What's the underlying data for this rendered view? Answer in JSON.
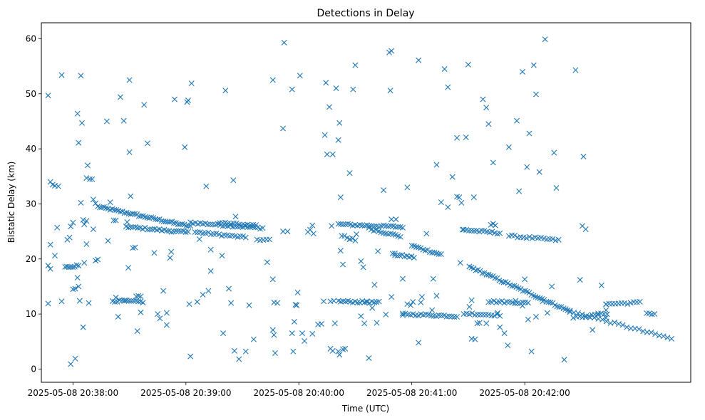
{
  "chart_data": {
    "type": "scatter",
    "title": "Detections in Delay",
    "xlabel": "Time (UTC)",
    "ylabel": "Bistatic Delay (km)",
    "x_unit": "minutes after 2025-05-08 20:37:00",
    "xlim": [
      0.72,
      6.47
    ],
    "ylim": [
      -2.4,
      62.9
    ],
    "x_ticks": [
      {
        "value": 1,
        "label": "2025-05-08 20:38:00"
      },
      {
        "value": 2,
        "label": "2025-05-08 20:39:00"
      },
      {
        "value": 3,
        "label": "2025-05-08 20:40:00"
      },
      {
        "value": 4,
        "label": "2025-05-08 20:41:00"
      },
      {
        "value": 5,
        "label": "2025-05-08 20:42:00"
      }
    ],
    "y_ticks": [
      {
        "value": 0,
        "label": "0"
      },
      {
        "value": 10,
        "label": "10"
      },
      {
        "value": 20,
        "label": "20"
      },
      {
        "value": 30,
        "label": "30"
      },
      {
        "value": 40,
        "label": "40"
      },
      {
        "value": 50,
        "label": "50"
      },
      {
        "value": 60,
        "label": "60"
      }
    ],
    "marker": "x",
    "color": "#1f77b4",
    "track_descriptions_note": "dense detection tracks encoded as line segments in data units",
    "tracks": [
      {
        "name": "track-a",
        "x0": 1.22,
        "y0": 29.5,
        "x1": 2.04,
        "y1": 25.9,
        "n": 46
      },
      {
        "name": "track-b",
        "x0": 2.04,
        "y0": 26.6,
        "x1": 2.68,
        "y1": 25.6,
        "n": 30
      },
      {
        "name": "track-c",
        "x0": 2.08,
        "y0": 24.9,
        "x1": 2.53,
        "y1": 23.9,
        "n": 20
      },
      {
        "name": "track-d",
        "x0": 1.49,
        "y0": 25.8,
        "x1": 2.02,
        "y1": 24.8,
        "n": 26
      },
      {
        "name": "track-e",
        "x0": 2.63,
        "y0": 23.6,
        "x1": 2.74,
        "y1": 23.5,
        "n": 5
      },
      {
        "name": "track-f",
        "x0": 3.35,
        "y0": 26.3,
        "x1": 3.92,
        "y1": 25.8,
        "n": 28
      },
      {
        "name": "track-g",
        "x0": 3.62,
        "y0": 25.5,
        "x1": 3.9,
        "y1": 24.1,
        "n": 14
      },
      {
        "name": "track-h",
        "x0": 3.38,
        "y0": 24.2,
        "x1": 3.5,
        "y1": 23.4,
        "n": 6
      },
      {
        "name": "track-i",
        "x0": 3.83,
        "y0": 20.8,
        "x1": 4.02,
        "y1": 20.3,
        "n": 10
      },
      {
        "name": "track-j",
        "x0": 4.0,
        "y0": 22.4,
        "x1": 4.26,
        "y1": 20.8,
        "n": 14
      },
      {
        "name": "track-k",
        "x0": 4.46,
        "y0": 25.3,
        "x1": 4.78,
        "y1": 24.7,
        "n": 15
      },
      {
        "name": "track-l",
        "x0": 4.86,
        "y0": 24.2,
        "x1": 5.3,
        "y1": 23.4,
        "n": 18
      },
      {
        "name": "track-m",
        "x0": 4.51,
        "y0": 18.6,
        "x1": 5.4,
        "y1": 10.5,
        "n": 48
      },
      {
        "name": "track-n",
        "x0": 5.4,
        "y0": 10.5,
        "x1": 6.3,
        "y1": 5.5,
        "n": 26
      },
      {
        "name": "track-o",
        "x0": 0.93,
        "y0": 18.5,
        "x1": 1.05,
        "y1": 18.8,
        "n": 8
      },
      {
        "name": "track-p",
        "x0": 1.35,
        "y0": 12.4,
        "x1": 1.62,
        "y1": 12.2,
        "n": 14
      },
      {
        "name": "track-q",
        "x0": 3.35,
        "y0": 12.3,
        "x1": 3.71,
        "y1": 12.1,
        "n": 18
      },
      {
        "name": "track-r",
        "x0": 3.92,
        "y0": 10.0,
        "x1": 4.4,
        "y1": 9.6,
        "n": 22
      },
      {
        "name": "track-s",
        "x0": 4.68,
        "y0": 12.3,
        "x1": 5.03,
        "y1": 12.0,
        "n": 16
      },
      {
        "name": "track-t",
        "x0": 4.46,
        "y0": 10.1,
        "x1": 4.78,
        "y1": 9.8,
        "n": 14
      },
      {
        "name": "track-u",
        "x0": 5.43,
        "y0": 9.3,
        "x1": 5.73,
        "y1": 10.1,
        "n": 12
      },
      {
        "name": "track-v",
        "x0": 5.72,
        "y0": 11.8,
        "x1": 6.02,
        "y1": 12.1,
        "n": 12
      },
      {
        "name": "track-w",
        "x0": 6.08,
        "y0": 10.2,
        "x1": 6.15,
        "y1": 10.0,
        "n": 4
      },
      {
        "name": "track-x",
        "x0": 2.3,
        "y0": 26.6,
        "x1": 2.62,
        "y1": 26.0,
        "n": 14
      }
    ],
    "points": [
      [
        0.78,
        49.7
      ],
      [
        0.8,
        34.0
      ],
      [
        0.82,
        33.5
      ],
      [
        0.84,
        33.3
      ],
      [
        0.87,
        33.2
      ],
      [
        0.78,
        18.8
      ],
      [
        0.8,
        18.2
      ],
      [
        0.78,
        11.9
      ],
      [
        0.8,
        22.6
      ],
      [
        0.84,
        20.6
      ],
      [
        0.86,
        25.7
      ],
      [
        0.9,
        53.4
      ],
      [
        0.9,
        12.3
      ],
      [
        0.95,
        23.5
      ],
      [
        0.97,
        23.9
      ],
      [
        0.98,
        25.9
      ],
      [
        1.0,
        26.6
      ],
      [
        1.0,
        14.5
      ],
      [
        1.02,
        14.6
      ],
      [
        1.04,
        46.4
      ],
      [
        1.05,
        41.1
      ],
      [
        1.06,
        12.4
      ],
      [
        1.07,
        53.3
      ],
      [
        1.08,
        44.7
      ],
      [
        1.09,
        27.1
      ],
      [
        1.1,
        26.3
      ],
      [
        1.13,
        37.0
      ],
      [
        1.12,
        34.7
      ],
      [
        1.15,
        34.5
      ],
      [
        1.17,
        34.5
      ],
      [
        1.18,
        30.8
      ],
      [
        1.2,
        30.1
      ],
      [
        1.07,
        30.2
      ],
      [
        1.1,
        19.3
      ],
      [
        1.12,
        22.7
      ],
      [
        1.14,
        12.0
      ],
      [
        1.09,
        7.6
      ],
      [
        0.98,
        0.9
      ],
      [
        1.02,
        1.9
      ],
      [
        1.04,
        16.6
      ],
      [
        1.05,
        15.0
      ],
      [
        1.12,
        26.9
      ],
      [
        1.18,
        25.4
      ],
      [
        1.2,
        19.7
      ],
      [
        1.22,
        19.9
      ],
      [
        1.3,
        45.0
      ],
      [
        1.31,
        23.3
      ],
      [
        1.33,
        30.3
      ],
      [
        1.36,
        27.0
      ],
      [
        1.38,
        27.0
      ],
      [
        1.42,
        49.4
      ],
      [
        1.45,
        45.1
      ],
      [
        1.48,
        26.7
      ],
      [
        1.47,
        25.9
      ],
      [
        1.5,
        52.5
      ],
      [
        1.5,
        39.4
      ],
      [
        1.51,
        31.4
      ],
      [
        1.49,
        18.4
      ],
      [
        1.53,
        22.0
      ],
      [
        1.55,
        22.1
      ],
      [
        1.56,
        13.2
      ],
      [
        1.58,
        13.3
      ],
      [
        1.6,
        13.2
      ],
      [
        1.57,
        6.9
      ],
      [
        1.6,
        10.3
      ],
      [
        1.63,
        48.0
      ],
      [
        1.66,
        41.0
      ],
      [
        1.72,
        21.1
      ],
      [
        1.4,
        9.5
      ],
      [
        1.38,
        13.0
      ],
      [
        1.46,
        12.5
      ],
      [
        1.75,
        10.0
      ],
      [
        1.77,
        9.2
      ],
      [
        1.8,
        14.2
      ],
      [
        1.83,
        8.0
      ],
      [
        1.83,
        10.2
      ],
      [
        1.86,
        20.2
      ],
      [
        1.87,
        21.3
      ],
      [
        1.9,
        49.0
      ],
      [
        1.99,
        40.3
      ],
      [
        2.01,
        48.5
      ],
      [
        2.02,
        48.8
      ],
      [
        2.05,
        51.9
      ],
      [
        2.04,
        2.3
      ],
      [
        2.03,
        11.8
      ],
      [
        2.1,
        12.2
      ],
      [
        2.12,
        23.6
      ],
      [
        2.15,
        13.5
      ],
      [
        2.18,
        33.2
      ],
      [
        2.2,
        14.2
      ],
      [
        2.22,
        21.7
      ],
      [
        2.22,
        17.8
      ],
      [
        2.35,
        50.6
      ],
      [
        2.32,
        20.6
      ],
      [
        2.33,
        6.5
      ],
      [
        2.38,
        14.6
      ],
      [
        2.4,
        12.0
      ],
      [
        2.42,
        34.3
      ],
      [
        2.44,
        27.7
      ],
      [
        2.43,
        3.3
      ],
      [
        2.47,
        1.8
      ],
      [
        2.53,
        3.2
      ],
      [
        2.56,
        11.6
      ],
      [
        2.6,
        5.4
      ],
      [
        2.72,
        19.4
      ],
      [
        2.77,
        52.5
      ],
      [
        2.77,
        16.3
      ],
      [
        2.78,
        12.1
      ],
      [
        2.77,
        7.1
      ],
      [
        2.78,
        6.2
      ],
      [
        2.79,
        2.9
      ],
      [
        2.81,
        12.0
      ],
      [
        2.87,
        59.3
      ],
      [
        2.86,
        43.7
      ],
      [
        2.86,
        25.0
      ],
      [
        2.9,
        25.0
      ],
      [
        2.94,
        50.8
      ],
      [
        2.94,
        6.5
      ],
      [
        2.97,
        11.7
      ],
      [
        2.95,
        3.2
      ],
      [
        2.96,
        8.6
      ],
      [
        2.98,
        11.6
      ],
      [
        2.99,
        13.9
      ],
      [
        2.98,
        11.6
      ],
      [
        3.01,
        53.3
      ],
      [
        3.03,
        6.5
      ],
      [
        3.05,
        5.1
      ],
      [
        3.08,
        24.9
      ],
      [
        3.1,
        25.3
      ],
      [
        3.12,
        26.1
      ],
      [
        3.13,
        24.6
      ],
      [
        3.12,
        6.4
      ],
      [
        3.17,
        8.1
      ],
      [
        3.2,
        8.2
      ],
      [
        3.22,
        12.3
      ],
      [
        3.24,
        52.0
      ],
      [
        3.23,
        42.5
      ],
      [
        3.25,
        39.0
      ],
      [
        3.27,
        47.6
      ],
      [
        3.29,
        26.0
      ],
      [
        3.3,
        39.0
      ],
      [
        3.33,
        51.0
      ],
      [
        3.31,
        12.4
      ],
      [
        3.35,
        41.6
      ],
      [
        3.36,
        44.7
      ],
      [
        3.37,
        31.2
      ],
      [
        3.37,
        21.5
      ],
      [
        3.39,
        19.0
      ],
      [
        3.32,
        8.3
      ],
      [
        3.28,
        12.3
      ],
      [
        3.28,
        3.7
      ],
      [
        3.3,
        3.3
      ],
      [
        3.35,
        3.2
      ],
      [
        3.36,
        2.6
      ],
      [
        3.39,
        3.6
      ],
      [
        3.41,
        3.7
      ],
      [
        3.45,
        35.6
      ],
      [
        3.48,
        50.8
      ],
      [
        3.5,
        55.2
      ],
      [
        3.45,
        23.6
      ],
      [
        3.51,
        24.5
      ],
      [
        3.55,
        19.6
      ],
      [
        3.57,
        18.5
      ],
      [
        3.58,
        8.3
      ],
      [
        3.62,
        2.0
      ],
      [
        3.67,
        15.3
      ],
      [
        3.69,
        8.4
      ],
      [
        3.7,
        21.4
      ],
      [
        3.75,
        32.5
      ],
      [
        3.77,
        9.9
      ],
      [
        3.8,
        57.5
      ],
      [
        3.82,
        57.8
      ],
      [
        3.81,
        50.6
      ],
      [
        3.82,
        27.2
      ],
      [
        3.86,
        27.2
      ],
      [
        3.82,
        13.1
      ],
      [
        3.85,
        21.0
      ],
      [
        3.92,
        16.4
      ],
      [
        3.96,
        33.0
      ],
      [
        3.96,
        11.8
      ],
      [
        3.99,
        11.6
      ],
      [
        4.01,
        12.2
      ],
      [
        4.06,
        4.8
      ],
      [
        4.08,
        12.1
      ],
      [
        4.09,
        13.1
      ],
      [
        4.06,
        56.1
      ],
      [
        4.13,
        24.6
      ],
      [
        4.18,
        10.7
      ],
      [
        4.22,
        37.1
      ],
      [
        4.26,
        30.3
      ],
      [
        4.29,
        54.5
      ],
      [
        4.32,
        51.2
      ],
      [
        4.32,
        29.4
      ],
      [
        4.36,
        34.9
      ],
      [
        4.4,
        42.0
      ],
      [
        4.4,
        31.3
      ],
      [
        4.42,
        31.2
      ],
      [
        4.44,
        30.2
      ],
      [
        4.43,
        19.3
      ],
      [
        4.45,
        25.3
      ],
      [
        4.48,
        42.1
      ],
      [
        4.5,
        55.3
      ],
      [
        4.51,
        11.3
      ],
      [
        4.53,
        12.5
      ],
      [
        4.53,
        5.5
      ],
      [
        4.56,
        5.4
      ],
      [
        4.58,
        8.3
      ],
      [
        4.6,
        8.4
      ],
      [
        4.55,
        31.2
      ],
      [
        4.63,
        49.0
      ],
      [
        4.66,
        47.5
      ],
      [
        4.68,
        44.5
      ],
      [
        4.72,
        37.5
      ],
      [
        4.66,
        8.3
      ],
      [
        4.7,
        26.2
      ],
      [
        4.72,
        26.4
      ],
      [
        4.74,
        26.1
      ],
      [
        4.76,
        10.2
      ],
      [
        4.78,
        7.6
      ],
      [
        4.82,
        6.5
      ],
      [
        4.85,
        4.3
      ],
      [
        4.86,
        40.3
      ],
      [
        4.93,
        45.1
      ],
      [
        4.95,
        32.3
      ],
      [
        4.98,
        54.0
      ],
      [
        5.0,
        16.3
      ],
      [
        5.02,
        36.7
      ],
      [
        5.04,
        42.8
      ],
      [
        5.06,
        3.2
      ],
      [
        5.08,
        55.2
      ],
      [
        5.1,
        49.9
      ],
      [
        5.13,
        35.8
      ],
      [
        5.16,
        12.3
      ],
      [
        5.18,
        59.9
      ],
      [
        5.2,
        10.2
      ],
      [
        5.24,
        15.0
      ],
      [
        5.26,
        39.3
      ],
      [
        5.28,
        32.9
      ],
      [
        5.35,
        1.7
      ],
      [
        5.45,
        54.3
      ],
      [
        5.51,
        26.0
      ],
      [
        5.54,
        25.4
      ],
      [
        5.52,
        38.6
      ],
      [
        5.49,
        16.2
      ],
      [
        5.6,
        7.1
      ],
      [
        5.65,
        10.1
      ],
      [
        5.68,
        15.2
      ],
      [
        5.72,
        9.3
      ],
      [
        5.72,
        10.7
      ],
      [
        5.72,
        11.8
      ],
      [
        5.03,
        9.0
      ],
      [
        4.98,
        11.5
      ],
      [
        4.92,
        12.4
      ],
      [
        5.1,
        9.5
      ],
      [
        4.22,
        13.3
      ],
      [
        4.19,
        16.4
      ],
      [
        3.92,
        9.8
      ],
      [
        3.6,
        12.3
      ],
      [
        3.65,
        11.1
      ],
      [
        3.55,
        9.6
      ]
    ]
  }
}
